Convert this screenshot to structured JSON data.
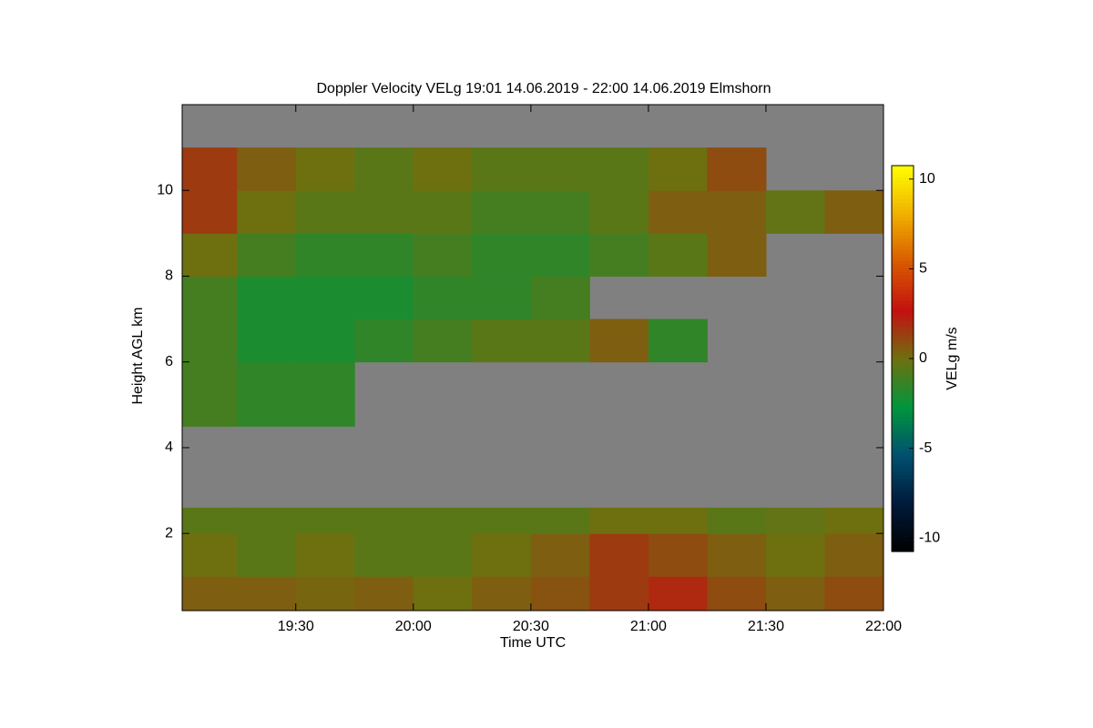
{
  "chart_data": {
    "type": "heatmap",
    "title": "Doppler Velocity VELg   19:01 14.06.2019 - 22:00 14.06.2019 Elmshorn",
    "x_label": "Time UTC",
    "y_label": "Height AGL km",
    "colorbar_label": "VELg m/s",
    "xlim": [
      1141,
      1320
    ],
    "xticks": [
      {
        "value": 1170,
        "label": "19:30"
      },
      {
        "value": 1200,
        "label": "20:00"
      },
      {
        "value": 1230,
        "label": "20:30"
      },
      {
        "value": 1260,
        "label": "21:00"
      },
      {
        "value": 1290,
        "label": "21:30"
      },
      {
        "value": 1320,
        "label": "22:00"
      }
    ],
    "ylim": [
      0.2,
      12
    ],
    "yticks": [
      2,
      4,
      6,
      8,
      10
    ],
    "clim": [
      -10.75,
      10.75
    ],
    "cticks": [
      -10,
      -5,
      0,
      5,
      10
    ],
    "colormap": [
      "#000000",
      "#001a3a",
      "#005070",
      "#00963c",
      "#6e7010",
      "#c41010",
      "#d85a00",
      "#f0b000",
      "#ffff00"
    ],
    "no_data_color": "#808080",
    "x_edges": [
      1141,
      1155,
      1170,
      1185,
      1200,
      1215,
      1230,
      1245,
      1260,
      1275,
      1290,
      1305,
      1320
    ],
    "y_edges": [
      0.2,
      1,
      2,
      2.6,
      4.5,
      6,
      7,
      8,
      9,
      10,
      11,
      12
    ],
    "z": [
      [
        0.5,
        0.5,
        0.3,
        0.5,
        0,
        0.5,
        0.8,
        1.5,
        2,
        1,
        0.5,
        1
      ],
      [
        0,
        -0.5,
        0,
        -0.5,
        -0.5,
        0,
        0.5,
        1.5,
        1,
        0.5,
        0,
        0.5
      ],
      [
        -0.5,
        -0.5,
        -0.5,
        -0.5,
        -0.5,
        -0.5,
        -0.5,
        0,
        0,
        -0.5,
        -0.3,
        0
      ],
      [
        null,
        null,
        null,
        null,
        null,
        null,
        null,
        null,
        null,
        null,
        null,
        null
      ],
      [
        -1,
        -1.5,
        -1.5,
        null,
        null,
        null,
        null,
        null,
        null,
        null,
        null,
        null
      ],
      [
        -1,
        -2,
        -2,
        -1.5,
        -1,
        -0.5,
        -0.5,
        0.5,
        -1.5,
        null,
        null,
        null
      ],
      [
        -1,
        -2,
        -2,
        -2,
        -1.5,
        -1.5,
        -1,
        null,
        null,
        null,
        null,
        null
      ],
      [
        0,
        -1,
        -1.5,
        -1.5,
        -1,
        -1.5,
        -1.5,
        -1,
        -0.5,
        0.5,
        null,
        null
      ],
      [
        1.5,
        0,
        -0.5,
        -0.5,
        -0.5,
        -1,
        -1,
        -0.5,
        0.5,
        0.5,
        -0.3,
        0.5
      ],
      [
        1.5,
        0.5,
        0,
        -0.5,
        0,
        -0.5,
        -0.5,
        -0.5,
        0,
        1,
        null,
        null
      ],
      [
        null,
        null,
        null,
        null,
        null,
        null,
        null,
        null,
        null,
        null,
        null,
        null
      ]
    ]
  }
}
